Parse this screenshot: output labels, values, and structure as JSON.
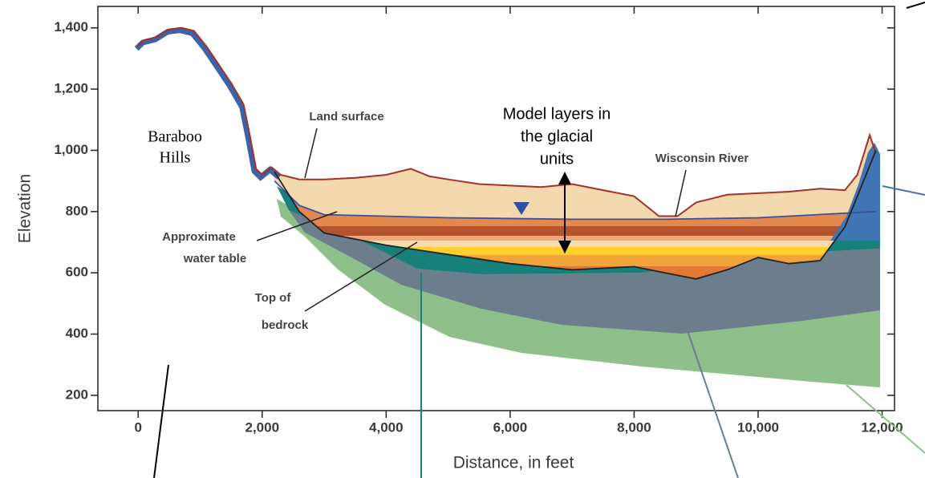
{
  "chart_data": {
    "type": "cross-section",
    "x_label": "Distance, in feet",
    "y_label": "Elevation",
    "xlim": [
      -650,
      12200
    ],
    "ylim": [
      150,
      1470
    ],
    "xticks": [
      0,
      {
        "value": 2000,
        "label": "2,000"
      },
      {
        "value": 4000,
        "label": "4,000"
      },
      {
        "value": 6000,
        "label": "6,000"
      },
      {
        "value": 8000,
        "label": "8,000"
      },
      {
        "value": 10000,
        "label": "10,000"
      },
      {
        "value": 12000,
        "label": "12,000"
      }
    ],
    "yticks": [
      200,
      400,
      600,
      800,
      {
        "value": 1000,
        "label": "1,000"
      },
      {
        "value": 1200,
        "label": "1,200"
      },
      {
        "value": 1400,
        "label": "1,400"
      }
    ],
    "series": [
      {
        "color": "#a3312b",
        "x": [
          0,
          100,
          300,
          500,
          700,
          900,
          1100,
          1300,
          1500,
          1700,
          1800,
          1900,
          2000,
          2150,
          2300,
          2600,
          3000,
          3500,
          4000,
          4400,
          4700,
          5000,
          5500,
          6000,
          6500,
          7000,
          7500,
          8000,
          8400,
          8700,
          9000,
          9500,
          10000,
          10500,
          11000,
          11400,
          11600,
          11800,
          11900
        ],
        "values": [
          1340,
          1360,
          1370,
          1395,
          1400,
          1390,
          1340,
          1280,
          1220,
          1150,
          1050,
          940,
          920,
          945,
          920,
          905,
          905,
          910,
          920,
          940,
          915,
          905,
          890,
          885,
          880,
          890,
          870,
          850,
          785,
          785,
          830,
          855,
          860,
          865,
          875,
          870,
          920,
          1050,
          990
        ]
      },
      {
        "color": "#3a4fa0",
        "x": [
          2200,
          2600,
          3000,
          5000,
          7000,
          8500,
          10000,
          11900
        ],
        "values": [
          900,
          820,
          790,
          780,
          775,
          775,
          780,
          800
        ]
      },
      {
        "color": "#222222",
        "x": [
          2200,
          2600,
          3000,
          4000,
          5000,
          6000,
          7000,
          8000,
          8500,
          9000,
          9500,
          10000,
          10500,
          11000,
          11400,
          11700,
          11900
        ],
        "values": [
          930,
          800,
          730,
          690,
          660,
          630,
          610,
          620,
          600,
          580,
          610,
          650,
          630,
          640,
          750,
          900,
          1000
        ]
      }
    ],
    "annotations": {
      "land_surface": "Land surface",
      "wisconsin_river": "Wisconsin River",
      "water_table": [
        "Approximate",
        "water table"
      ],
      "bedrock": [
        "Top of",
        "bedrock"
      ],
      "hills": [
        "Baraboo",
        "Hills"
      ],
      "model_layers": [
        "Model layers in",
        "the glacial",
        "units"
      ]
    }
  }
}
